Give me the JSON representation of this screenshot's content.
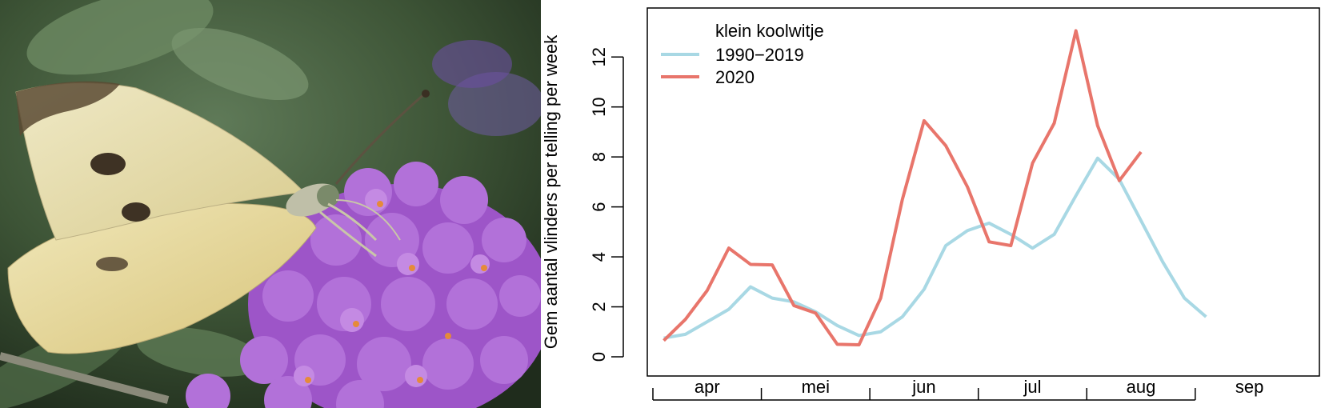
{
  "photo": {
    "subject": "small white butterfly on purple flowers"
  },
  "chart_data": {
    "type": "line",
    "title": "",
    "xlabel": "",
    "ylabel": "Gem aantal vlinders per telling per week",
    "ylim": [
      0,
      13.5
    ],
    "yticks": [
      0,
      2,
      4,
      6,
      8,
      10,
      12
    ],
    "xlim": [
      0,
      28.4
    ],
    "month_labels": [
      "apr",
      "mei",
      "jun",
      "jul",
      "aug",
      "sep"
    ],
    "month_boundaries": [
      0,
      5,
      10,
      15,
      20,
      25
    ],
    "legend": {
      "title": "klein koolwitje",
      "position": "top-left"
    },
    "grid": false,
    "series": [
      {
        "name": "1990−2019",
        "color": "#a8d8e4",
        "x": [
          0.5,
          1.5,
          2.5,
          3.5,
          4.5,
          5.5,
          6.5,
          7.5,
          8.5,
          9.5,
          10.5,
          11.5,
          12.5,
          13.5,
          14.5,
          15.5,
          16.5,
          17.5,
          18.5,
          19.5,
          20.5,
          21.5,
          22.5,
          23.5,
          24.5,
          25.5,
          26.5,
          27.5
        ],
        "values": [
          0.75,
          0.9,
          1.4,
          1.9,
          2.8,
          2.35,
          2.2,
          1.8,
          1.25,
          0.85,
          1.0,
          1.6,
          2.7,
          4.45,
          5.05,
          5.35,
          4.9,
          4.35,
          4.9,
          6.45,
          7.95,
          7.1,
          5.45,
          3.8,
          2.35,
          1.6,
          null,
          null
        ]
      },
      {
        "name": "2020",
        "color": "#e8756b",
        "x": [
          0.5,
          1.5,
          2.5,
          3.5,
          4.5,
          5.5,
          6.5,
          7.5,
          8.5,
          9.5,
          10.5,
          11.5,
          12.5,
          13.5,
          14.5,
          15.5,
          16.5,
          17.5,
          18.5,
          19.5,
          20.5,
          21.5,
          22.5
        ],
        "values": [
          0.65,
          1.5,
          2.65,
          4.35,
          3.7,
          3.68,
          2.05,
          1.75,
          0.5,
          0.48,
          2.35,
          6.3,
          9.45,
          8.45,
          6.8,
          4.6,
          4.45,
          7.75,
          9.35,
          13.05,
          9.25,
          7.05,
          8.2
        ]
      }
    ]
  }
}
